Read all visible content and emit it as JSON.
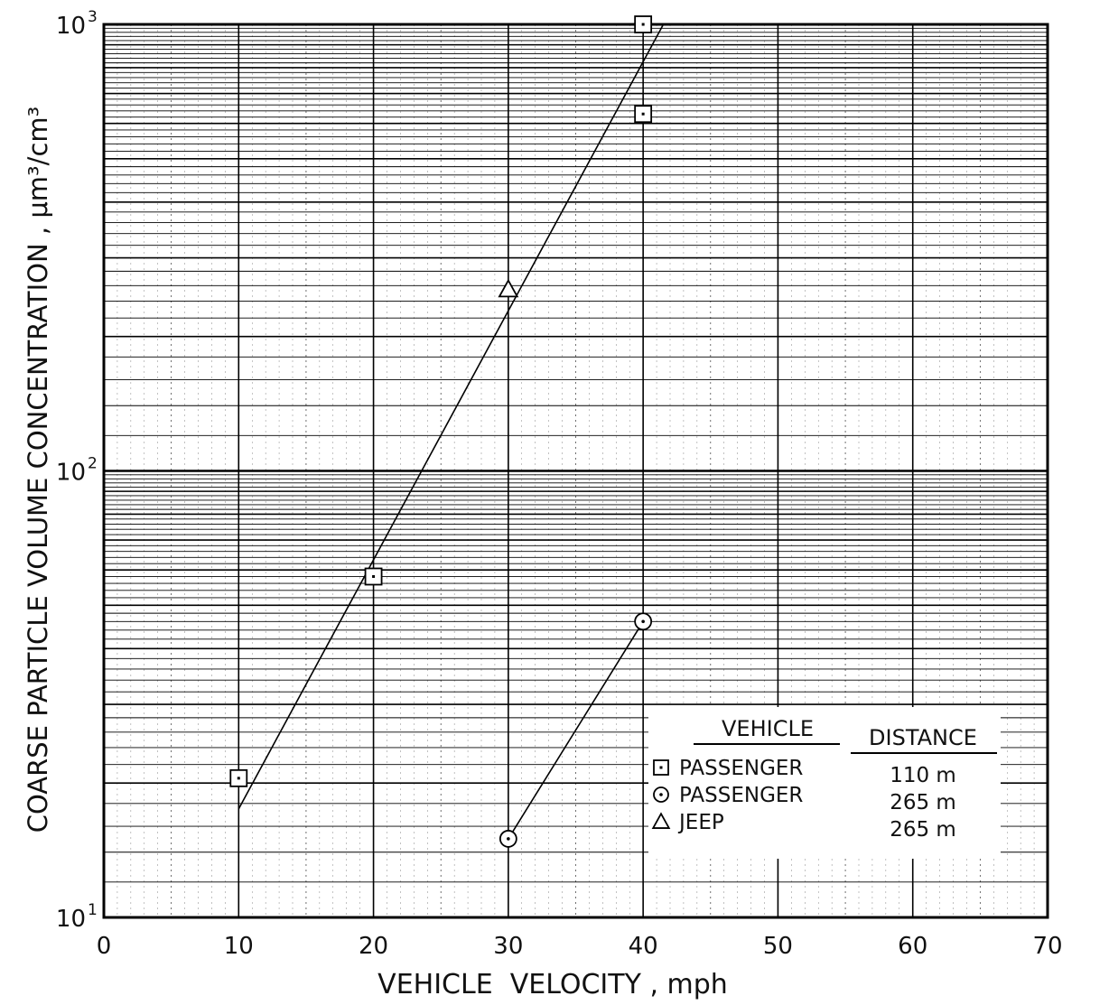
{
  "chart_data": {
    "type": "scatter",
    "xlabel": "VEHICLE  VELOCITY , mph",
    "ylabel": "COARSE PARTICLE VOLUME CONCENTRATION , μm³/cm³",
    "xlim": [
      0,
      70
    ],
    "ylim": [
      10,
      1000
    ],
    "y_scale": "log",
    "grid": true,
    "x_ticks": [
      "0",
      "10",
      "20",
      "30",
      "40",
      "50",
      "60",
      "70"
    ],
    "y_ticks": [
      {
        "base": "10",
        "exp": "1",
        "value": 10
      },
      {
        "base": "10",
        "exp": "2",
        "value": 100
      },
      {
        "base": "10",
        "exp": "3",
        "value": 1000
      }
    ],
    "legend": {
      "position": "bottom-right",
      "header_vehicle": "VEHICLE",
      "header_distance": "DISTANCE",
      "entries": [
        {
          "marker": "square",
          "vehicle": "PASSENGER",
          "distance": "110  m"
        },
        {
          "marker": "circle",
          "vehicle": "PASSENGER",
          "distance": "265  m"
        },
        {
          "marker": "triangle",
          "vehicle": "JEEP",
          "distance": "265  m"
        }
      ]
    },
    "series": [
      {
        "marker": "square",
        "points": [
          {
            "x": 10,
            "y": 20.5
          },
          {
            "x": 20,
            "y": 58
          },
          {
            "x": 40,
            "y": 1000
          },
          {
            "x": 40,
            "y": 630
          }
        ]
      },
      {
        "marker": "circle",
        "points": [
          {
            "x": 30,
            "y": 15
          },
          {
            "x": 40,
            "y": 46
          }
        ]
      },
      {
        "marker": "triangle",
        "points": [
          {
            "x": 30,
            "y": 255
          }
        ]
      }
    ],
    "fit_lines": [
      {
        "from": {
          "x": 10,
          "y": 17.5
        },
        "to": {
          "x": 41.5,
          "y": 1000
        }
      },
      {
        "from": {
          "x": 30,
          "y": 15
        },
        "to": {
          "x": 40,
          "y": 46
        }
      }
    ]
  }
}
